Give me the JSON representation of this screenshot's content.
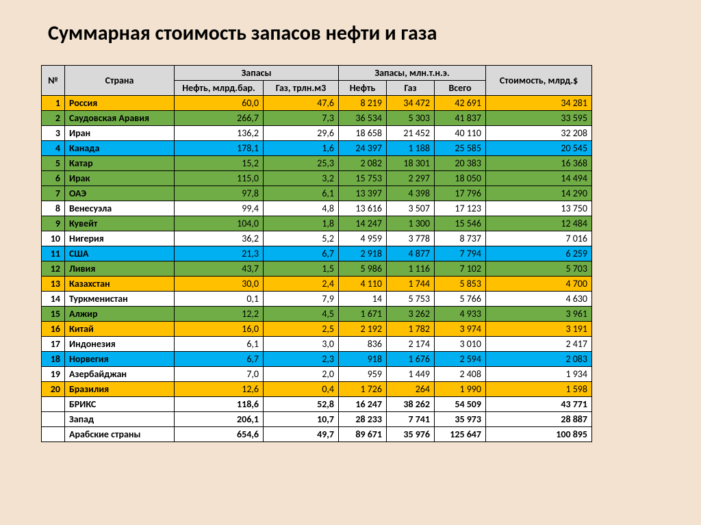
{
  "title": "Суммарная стоимость запасов нефти и газа",
  "colors": {
    "page_bg": "#f2e2cf",
    "header_bg": "#d9d9d9",
    "orange": "#ffc000",
    "green": "#70ad47",
    "white": "#ffffff",
    "blue": "#00b0f0",
    "grid": "#000000"
  },
  "header": {
    "num": "№",
    "country": "Страна",
    "reserves_group": "Запасы",
    "reserves_mtoe_group": "Запасы, млн.т.н.э.",
    "oil_bbl": "Нефть, млрд.бар.",
    "gas_tcm": "Газ, трлн.м3",
    "oil": "Нефть",
    "gas": "Газ",
    "total": "Всего",
    "value": "Стоимость, млрд.$"
  },
  "rows": [
    {
      "n": "1",
      "country": "Россия",
      "oil_bbl": "60,0",
      "gas_tcm": "47,6",
      "oil": "8 219",
      "gas": "34 472",
      "total": "42 691",
      "value": "34 281",
      "color": "orange"
    },
    {
      "n": "2",
      "country": "Саудовская Аравия",
      "oil_bbl": "266,7",
      "gas_tcm": "7,3",
      "oil": "36 534",
      "gas": "5 303",
      "total": "41 837",
      "value": "33 595",
      "color": "green"
    },
    {
      "n": "3",
      "country": "Иран",
      "oil_bbl": "136,2",
      "gas_tcm": "29,6",
      "oil": "18 658",
      "gas": "21 452",
      "total": "40 110",
      "value": "32 208",
      "color": "white"
    },
    {
      "n": "4",
      "country": "Канада",
      "oil_bbl": "178,1",
      "gas_tcm": "1,6",
      "oil": "24 397",
      "gas": "1 188",
      "total": "25 585",
      "value": "20 545",
      "color": "blue"
    },
    {
      "n": "5",
      "country": "Катар",
      "oil_bbl": "15,2",
      "gas_tcm": "25,3",
      "oil": "2 082",
      "gas": "18 301",
      "total": "20 383",
      "value": "16 368",
      "color": "green"
    },
    {
      "n": "6",
      "country": "Ирак",
      "oil_bbl": "115,0",
      "gas_tcm": "3,2",
      "oil": "15 753",
      "gas": "2 297",
      "total": "18 050",
      "value": "14 494",
      "color": "green"
    },
    {
      "n": "7",
      "country": "ОАЭ",
      "oil_bbl": "97,8",
      "gas_tcm": "6,1",
      "oil": "13 397",
      "gas": "4 398",
      "total": "17 796",
      "value": "14 290",
      "color": "green"
    },
    {
      "n": "8",
      "country": "Венесуэла",
      "oil_bbl": "99,4",
      "gas_tcm": "4,8",
      "oil": "13 616",
      "gas": "3 507",
      "total": "17 123",
      "value": "13 750",
      "color": "white"
    },
    {
      "n": "9",
      "country": "Кувейт",
      "oil_bbl": "104,0",
      "gas_tcm": "1,8",
      "oil": "14 247",
      "gas": "1 300",
      "total": "15 546",
      "value": "12 484",
      "color": "green"
    },
    {
      "n": "10",
      "country": "Нигерия",
      "oil_bbl": "36,2",
      "gas_tcm": "5,2",
      "oil": "4 959",
      "gas": "3 778",
      "total": "8 737",
      "value": "7 016",
      "color": "white"
    },
    {
      "n": "11",
      "country": "США",
      "oil_bbl": "21,3",
      "gas_tcm": "6,7",
      "oil": "2 918",
      "gas": "4 877",
      "total": "7 794",
      "value": "6 259",
      "color": "blue"
    },
    {
      "n": "12",
      "country": "Ливия",
      "oil_bbl": "43,7",
      "gas_tcm": "1,5",
      "oil": "5 986",
      "gas": "1 116",
      "total": "7 102",
      "value": "5 703",
      "color": "green"
    },
    {
      "n": "13",
      "country": "Казахстан",
      "oil_bbl": "30,0",
      "gas_tcm": "2,4",
      "oil": "4 110",
      "gas": "1 744",
      "total": "5 853",
      "value": "4 700",
      "color": "orange"
    },
    {
      "n": "14",
      "country": "Туркменистан",
      "oil_bbl": "0,1",
      "gas_tcm": "7,9",
      "oil": "14",
      "gas": "5 753",
      "total": "5 766",
      "value": "4 630",
      "color": "white"
    },
    {
      "n": "15",
      "country": "Алжир",
      "oil_bbl": "12,2",
      "gas_tcm": "4,5",
      "oil": "1 671",
      "gas": "3 262",
      "total": "4 933",
      "value": "3 961",
      "color": "green"
    },
    {
      "n": "16",
      "country": "Китай",
      "oil_bbl": "16,0",
      "gas_tcm": "2,5",
      "oil": "2 192",
      "gas": "1 782",
      "total": "3 974",
      "value": "3 191",
      "color": "orange"
    },
    {
      "n": "17",
      "country": "Индонезия",
      "oil_bbl": "6,1",
      "gas_tcm": "3,0",
      "oil": "836",
      "gas": "2 174",
      "total": "3 010",
      "value": "2 417",
      "color": "white"
    },
    {
      "n": "18",
      "country": "Норвегия",
      "oil_bbl": "6,7",
      "gas_tcm": "2,3",
      "oil": "918",
      "gas": "1 676",
      "total": "2 594",
      "value": "2 083",
      "color": "blue"
    },
    {
      "n": "19",
      "country": "Азербайджан",
      "oil_bbl": "7,0",
      "gas_tcm": "2,0",
      "oil": "959",
      "gas": "1 449",
      "total": "2 408",
      "value": "1 934",
      "color": "white"
    },
    {
      "n": "20",
      "country": "Бразилия",
      "oil_bbl": "12,6",
      "gas_tcm": "0,4",
      "oil": "1 726",
      "gas": "264",
      "total": "1 990",
      "value": "1 598",
      "color": "orange"
    }
  ],
  "summary": [
    {
      "country": "БРИКС",
      "oil_bbl": "118,6",
      "gas_tcm": "52,8",
      "oil": "16 247",
      "gas": "38 262",
      "total": "54 509",
      "value": "43 771"
    },
    {
      "country": "Запад",
      "oil_bbl": "206,1",
      "gas_tcm": "10,7",
      "oil": "28 233",
      "gas": "7 741",
      "total": "35 973",
      "value": "28 887"
    },
    {
      "country": "Арабские страны",
      "oil_bbl": "654,6",
      "gas_tcm": "49,7",
      "oil": "89 671",
      "gas": "35 976",
      "total": "125 647",
      "value": "100 895"
    }
  ]
}
